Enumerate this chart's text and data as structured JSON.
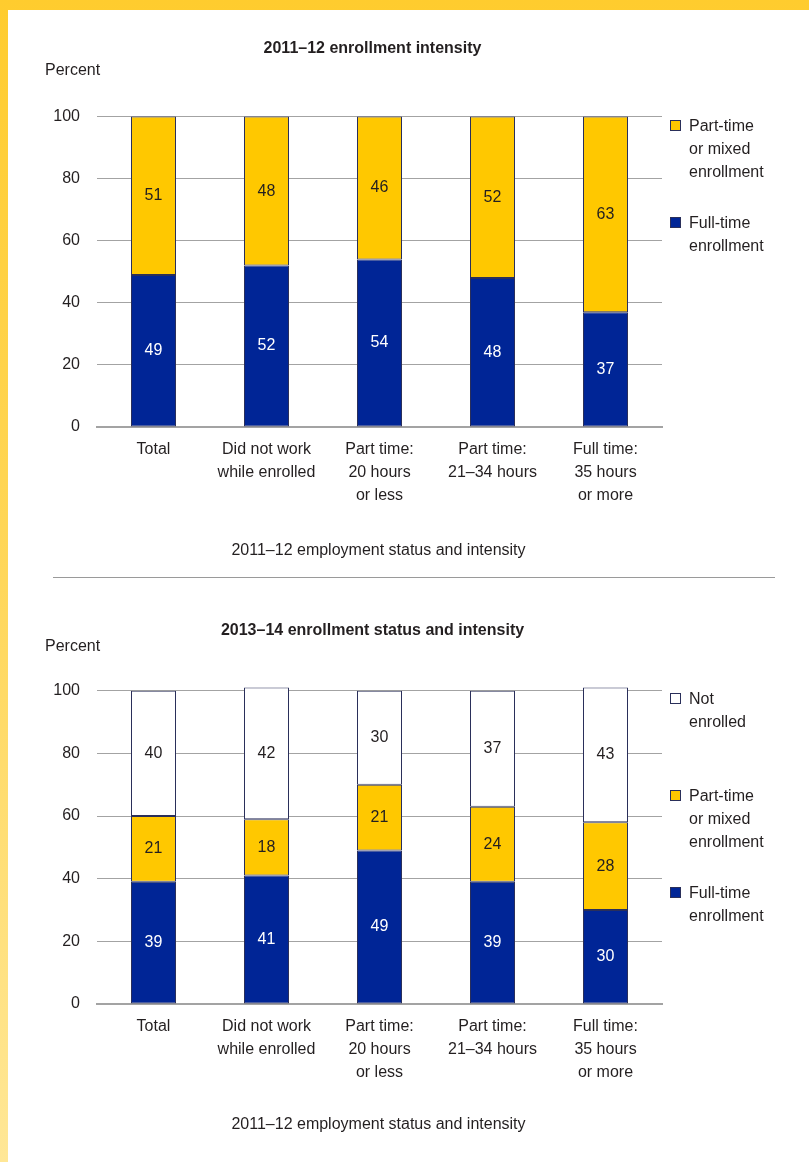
{
  "chart_data": [
    {
      "type": "bar",
      "title": "2011–12 enrollment intensity",
      "ylabel": "Percent",
      "xlabel": "2011–12 employment status and intensity",
      "categories": [
        "Total",
        "Did not work while enrolled",
        "Part time: 20 hours or less",
        "Part time: 21–34 hours",
        "Full time: 35 hours or more"
      ],
      "series": [
        {
          "name": "Full-time enrollment",
          "color": "#002596",
          "values": [
            49,
            52,
            54,
            48,
            37
          ]
        },
        {
          "name": "Part-time or mixed enrollment",
          "color": "#ffc800",
          "values": [
            51,
            48,
            46,
            52,
            63
          ]
        }
      ],
      "stacked": true,
      "ylim": [
        0,
        100
      ],
      "yticks": [
        0,
        20,
        40,
        60,
        80,
        100
      ],
      "grid": "y",
      "legend": "right",
      "data_labels": true
    },
    {
      "type": "bar",
      "title": "2013–14 enrollment status and intensity",
      "ylabel": "Percent",
      "xlabel": "2011–12 employment status and intensity",
      "categories": [
        "Total",
        "Did not work while enrolled",
        "Part time: 20 hours or less",
        "Part time: 21–34 hours",
        "Full time: 35 hours or more"
      ],
      "series": [
        {
          "name": "Full-time enrollment",
          "color": "#002596",
          "values": [
            39,
            41,
            49,
            39,
            30
          ]
        },
        {
          "name": "Part-time or mixed enrollment",
          "color": "#ffc800",
          "values": [
            21,
            18,
            21,
            24,
            28
          ]
        },
        {
          "name": "Not enrolled",
          "color": "#ffffff",
          "values": [
            40,
            42,
            30,
            37,
            43
          ]
        }
      ],
      "stacked": true,
      "ylim": [
        0,
        101
      ],
      "yticks": [
        0,
        20,
        40,
        60,
        80,
        100
      ],
      "grid": "y",
      "legend": "right",
      "data_labels": true
    }
  ]
}
